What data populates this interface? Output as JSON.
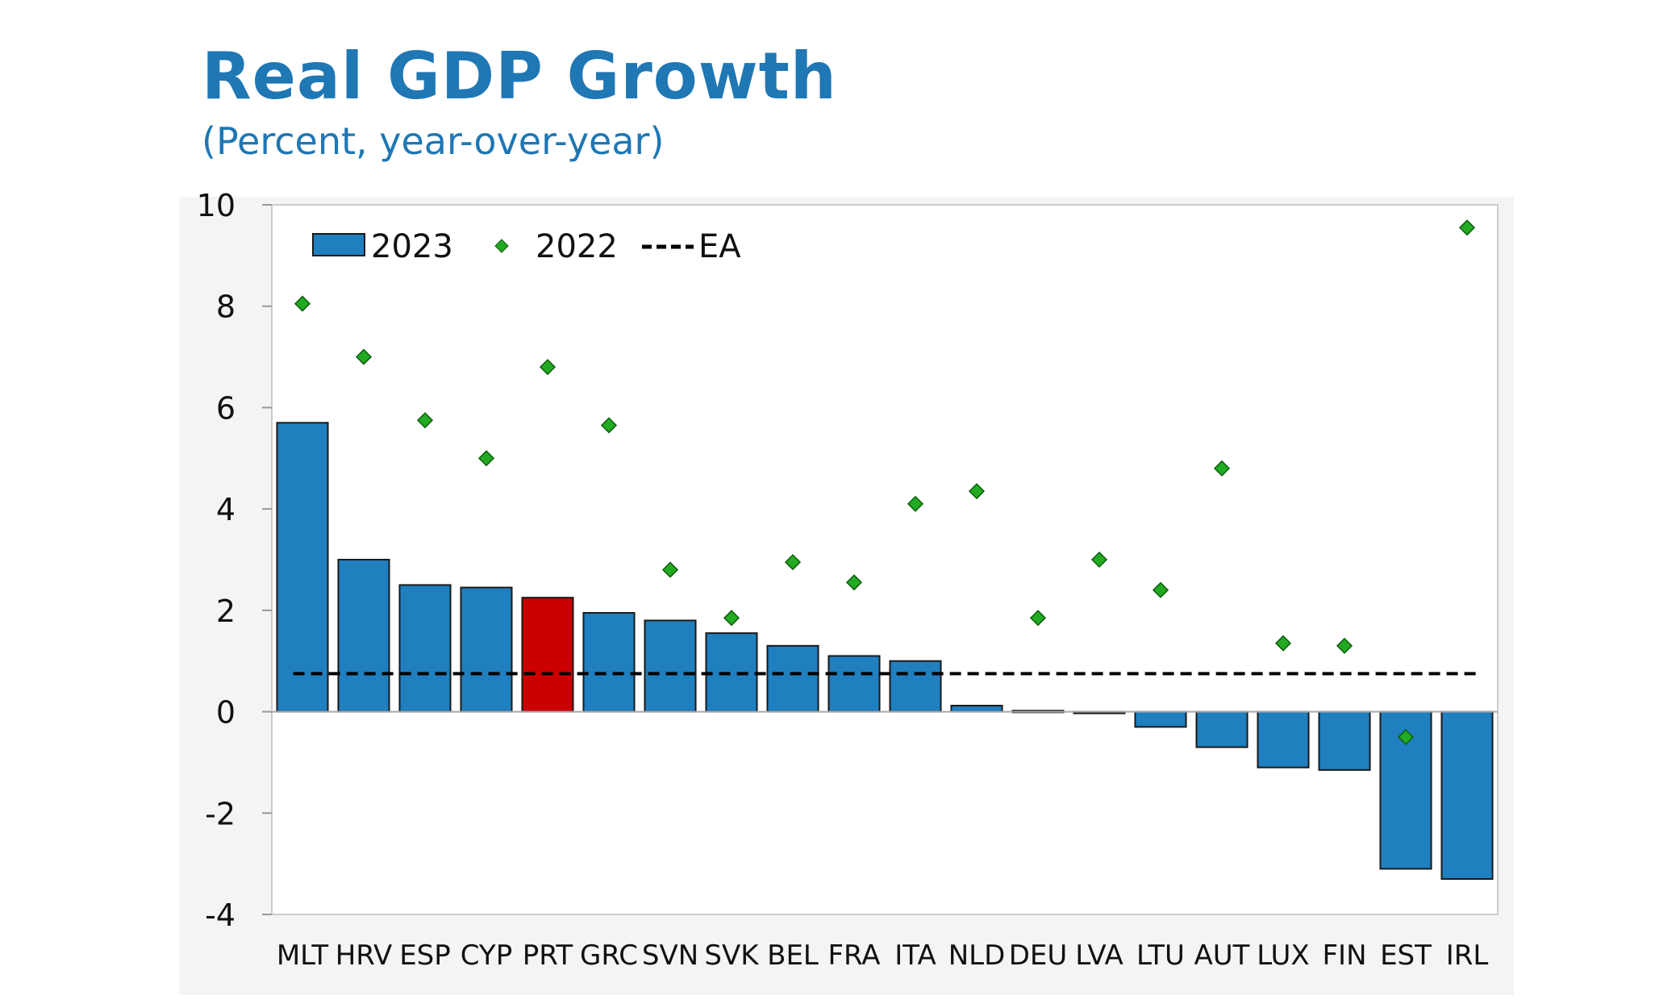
{
  "title": "Real GDP Growth",
  "subtitle": "(Percent, year-over-year)",
  "chart_data": {
    "type": "bar",
    "categories": [
      "MLT",
      "HRV",
      "ESP",
      "CYP",
      "PRT",
      "GRC",
      "SVN",
      "SVK",
      "BEL",
      "FRA",
      "ITA",
      "NLD",
      "DEU",
      "LVA",
      "LTU",
      "AUT",
      "LUX",
      "FIN",
      "EST",
      "IRL"
    ],
    "series": [
      {
        "name": "2023",
        "type": "bar",
        "color": "#1f7fbf",
        "highlight": {
          "PRT": "#cc0000"
        },
        "values": [
          5.7,
          3.0,
          2.5,
          2.45,
          2.25,
          1.95,
          1.8,
          1.55,
          1.3,
          1.1,
          1.0,
          0.12,
          0.02,
          0.0,
          -0.3,
          -0.7,
          -1.1,
          -1.15,
          -3.1,
          -3.3
        ]
      },
      {
        "name": "2022",
        "type": "scatter",
        "marker": "diamond",
        "color": "#22aa22",
        "values": [
          8.05,
          7.0,
          5.75,
          5.0,
          6.8,
          5.65,
          2.8,
          1.85,
          2.95,
          2.55,
          4.1,
          4.35,
          1.85,
          3.0,
          2.4,
          4.8,
          1.35,
          1.3,
          -0.5,
          9.55
        ]
      },
      {
        "name": "EA",
        "type": "line",
        "style": "dashed",
        "color": "#000000",
        "value": 0.75
      }
    ],
    "ylim": [
      -4,
      10
    ],
    "yticks": [
      -4,
      -2,
      0,
      2,
      4,
      6,
      8,
      10
    ],
    "xlabel": "",
    "ylabel": "",
    "legend": [
      "2023",
      "2022",
      "EA"
    ],
    "legend_position": "top-left"
  }
}
